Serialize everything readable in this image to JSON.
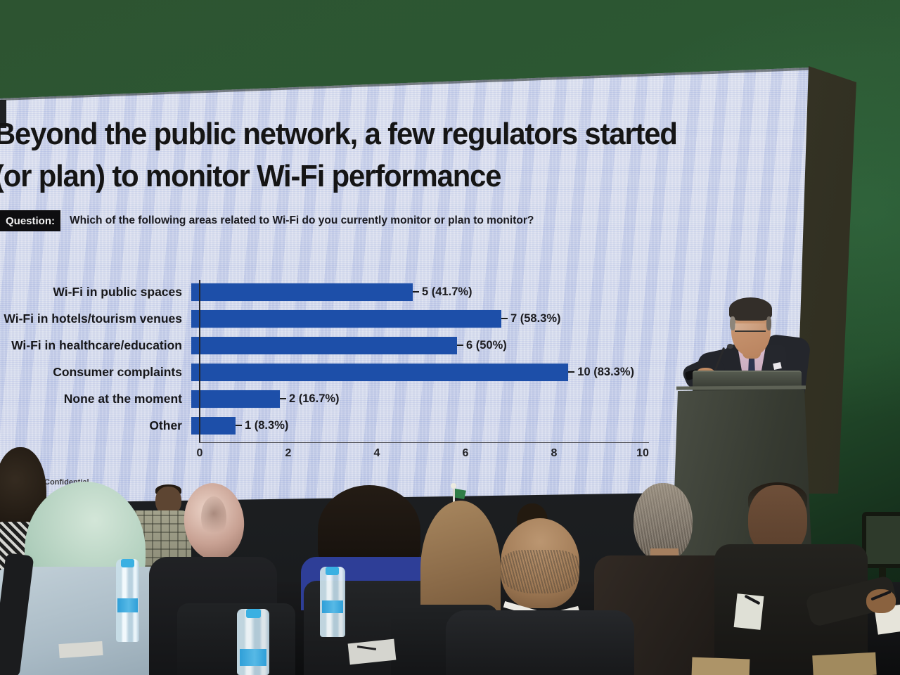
{
  "slide": {
    "title_line1": "Beyond the public network, a few regulators started",
    "title_line2": "(or plan) to monitor Wi-Fi performance",
    "question_label": "Question:",
    "question_text": "Which of the following areas related to Wi-Fi do you currently monitor or plan to monitor?",
    "footer_note": "Confidential"
  },
  "chart_data": {
    "type": "bar",
    "orientation": "horizontal",
    "title": "",
    "categories": [
      "Wi-Fi in public spaces",
      "Wi-Fi in hotels/tourism venues",
      "Wi-Fi in healthcare/education",
      "Consumer complaints",
      "None at the moment",
      "Other"
    ],
    "values": [
      5,
      7,
      6,
      10,
      2,
      1
    ],
    "value_labels": [
      "5 (41.7%)",
      "7 (58.3%)",
      "6 (50%)",
      "10 (83.3%)",
      "2 (16.7%)",
      "1 (8.3%)"
    ],
    "xlim": [
      0,
      10
    ],
    "xticks": [
      0,
      2,
      4,
      6,
      8,
      10
    ],
    "grid": false,
    "legend_position": "none",
    "bar_color": "#1d4fa9"
  },
  "colors": {
    "bar_blue": "#1d4fa9",
    "screen_background": "#d2d8ea",
    "wall_green": "#2c5632",
    "bottle_cap_blue": "#3ab0e2"
  }
}
